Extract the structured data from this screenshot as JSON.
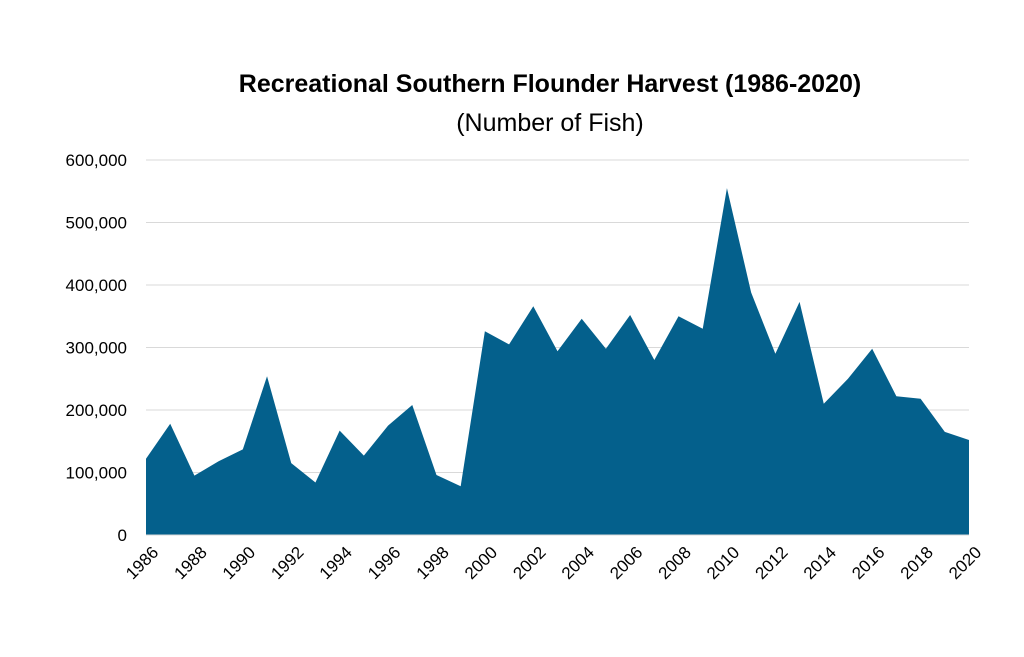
{
  "chart_data": {
    "type": "area",
    "title": "Recreational Southern Flounder Harvest (1986-2020)",
    "subtitle": "(Number of Fish)",
    "xlabel": "",
    "ylabel": "",
    "x": [
      1986,
      1987,
      1988,
      1989,
      1990,
      1991,
      1992,
      1993,
      1994,
      1995,
      1996,
      1997,
      1998,
      1999,
      2000,
      2001,
      2002,
      2003,
      2004,
      2005,
      2006,
      2007,
      2008,
      2009,
      2010,
      2011,
      2012,
      2013,
      2014,
      2015,
      2016,
      2017,
      2018,
      2019,
      2020
    ],
    "series": [
      {
        "values": [
          122000,
          178000,
          95000,
          118000,
          137000,
          254000,
          115000,
          84000,
          167000,
          127000,
          175000,
          208000,
          96000,
          78000,
          326000,
          305000,
          366000,
          294000,
          346000,
          298000,
          352000,
          280000,
          350000,
          330000,
          555000,
          388000,
          290000,
          373000,
          210000,
          250000,
          298000,
          222000,
          218000,
          165000,
          152000
        ],
        "color": "#04608c"
      }
    ],
    "ylim": [
      0,
      600000
    ],
    "yticks": [
      0,
      100000,
      200000,
      300000,
      400000,
      500000,
      600000
    ],
    "ytick_labels": [
      "0",
      "100,000",
      "200,000",
      "300,000",
      "400,000",
      "500,000",
      "600,000"
    ],
    "xtick_labels": [
      "1986",
      "1988",
      "1990",
      "1992",
      "1994",
      "1996",
      "1998",
      "2000",
      "2002",
      "2004",
      "2006",
      "2008",
      "2010",
      "2012",
      "2014",
      "2016",
      "2018",
      "2020"
    ],
    "grid": true,
    "legend": "none"
  }
}
